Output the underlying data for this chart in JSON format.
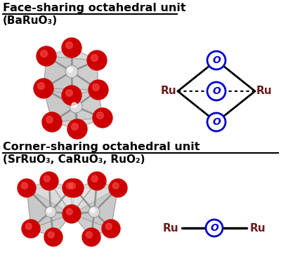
{
  "title1": "Face-sharing octahedral unit",
  "subtitle1": "(BaRuO₃)",
  "title2": "Corner-sharing octahedral unit",
  "subtitle2": "(SrRuO₃, CaRuO₃, RuO₂)",
  "ru_color": "#6B1A1A",
  "o_color": "#0000CC",
  "bond_color": "#000000",
  "red_ball_color": "#CC0000",
  "bg_color": "#FFFFFF",
  "title_fontsize": 11.5,
  "subtitle_fontsize": 11,
  "label_fontsize": 11
}
